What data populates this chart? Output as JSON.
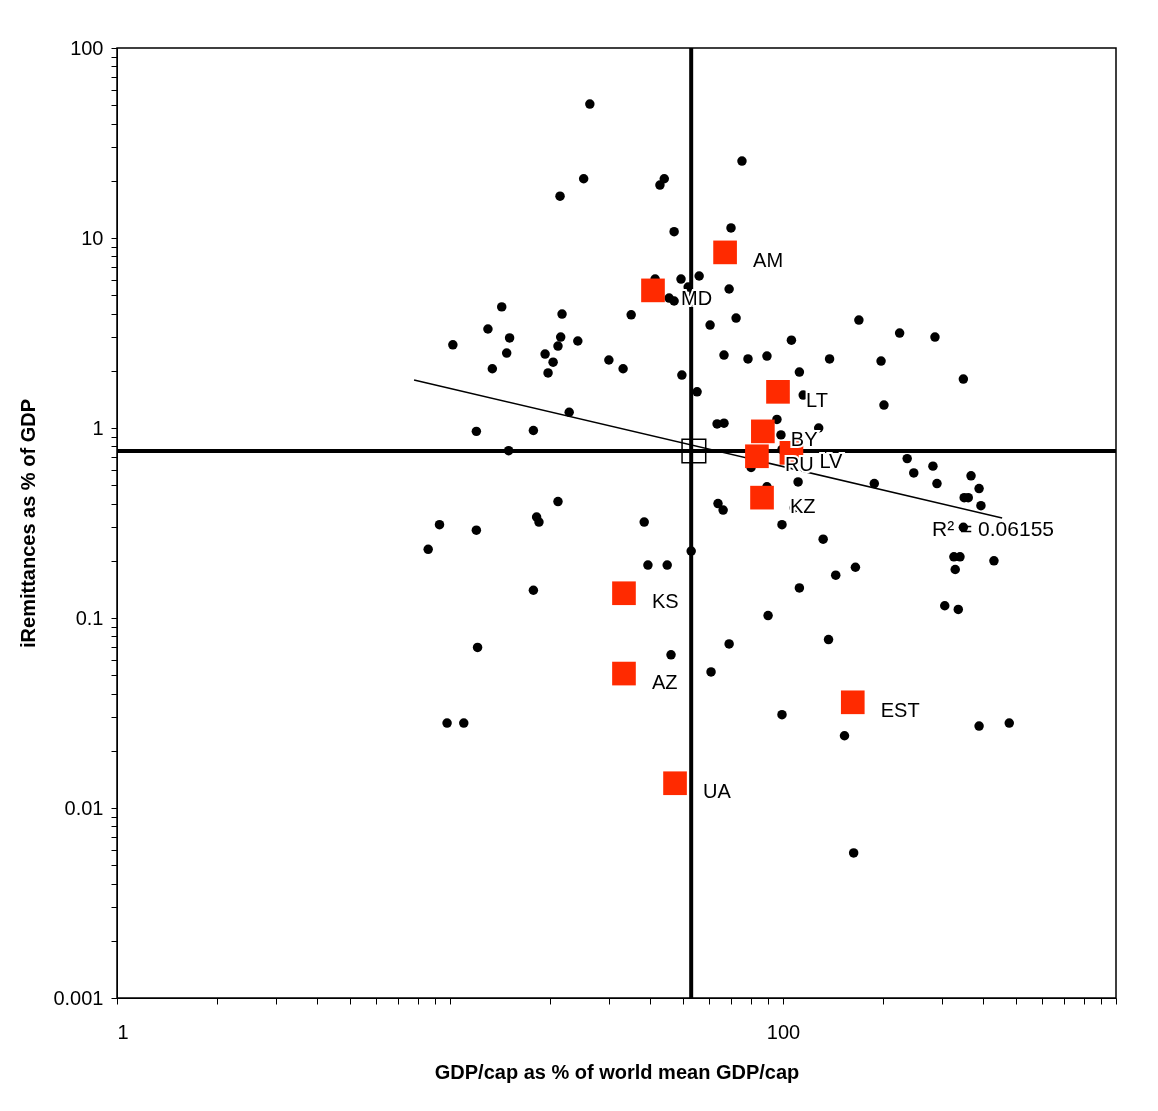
{
  "chart_data": {
    "type": "scatter",
    "xlabel": "GDP/cap as % of world mean GDP/cap",
    "ylabel": "iRemittances as % of GDP",
    "log": "xy",
    "grid": false,
    "xlim": [
      1,
      1000
    ],
    "ylim": [
      0.001,
      100
    ],
    "xticks": [
      1,
      {
        "value": 2,
        "label": null
      },
      {
        "value": 3,
        "label": null
      },
      {
        "value": 4,
        "label": null
      },
      {
        "value": 5,
        "label": null
      },
      {
        "value": 6,
        "label": null
      },
      {
        "value": 7,
        "label": null
      },
      {
        "value": 8,
        "label": null
      },
      {
        "value": 9,
        "label": null
      },
      {
        "value": 10,
        "label": null
      },
      {
        "value": 20,
        "label": null
      },
      {
        "value": 30,
        "label": null
      },
      {
        "value": 40,
        "label": null
      },
      {
        "value": 50,
        "label": null
      },
      {
        "value": 60,
        "label": null
      },
      {
        "value": 70,
        "label": null
      },
      {
        "value": 80,
        "label": null
      },
      {
        "value": 90,
        "label": null
      },
      100,
      {
        "value": 200,
        "label": null
      },
      {
        "value": 300,
        "label": null
      },
      {
        "value": 400,
        "label": null
      },
      {
        "value": 500,
        "label": null
      },
      {
        "value": 600,
        "label": null
      },
      {
        "value": 700,
        "label": null
      },
      {
        "value": 800,
        "label": null
      },
      {
        "value": 900,
        "label": null
      },
      {
        "value": 1000,
        "label": null
      }
    ],
    "yticks": [
      0.001,
      {
        "value": 0.002,
        "label": null
      },
      {
        "value": 0.003,
        "label": null
      },
      {
        "value": 0.004,
        "label": null
      },
      {
        "value": 0.005,
        "label": null
      },
      {
        "value": 0.006,
        "label": null
      },
      {
        "value": 0.007,
        "label": null
      },
      {
        "value": 0.008,
        "label": null
      },
      {
        "value": 0.009,
        "label": null
      },
      0.01,
      {
        "value": 0.02,
        "label": null
      },
      {
        "value": 0.03,
        "label": null
      },
      {
        "value": 0.04,
        "label": null
      },
      {
        "value": 0.05,
        "label": null
      },
      {
        "value": 0.06,
        "label": null
      },
      {
        "value": 0.07,
        "label": null
      },
      {
        "value": 0.08,
        "label": null
      },
      {
        "value": 0.09,
        "label": null
      },
      0.1,
      {
        "value": 0.2,
        "label": null
      },
      {
        "value": 0.3,
        "label": null
      },
      {
        "value": 0.4,
        "label": null
      },
      {
        "value": 0.5,
        "label": null
      },
      {
        "value": 0.6,
        "label": null
      },
      {
        "value": 0.7,
        "label": null
      },
      {
        "value": 0.8,
        "label": null
      },
      {
        "value": 0.9,
        "label": null
      },
      1,
      {
        "value": 2,
        "label": null
      },
      {
        "value": 3,
        "label": null
      },
      {
        "value": 4,
        "label": null
      },
      {
        "value": 5,
        "label": null
      },
      {
        "value": 6,
        "label": null
      },
      {
        "value": 7,
        "label": null
      },
      {
        "value": 8,
        "label": null
      },
      {
        "value": 9,
        "label": null
      },
      10,
      {
        "value": 20,
        "label": null
      },
      {
        "value": 30,
        "label": null
      },
      {
        "value": 40,
        "label": null
      },
      {
        "value": 50,
        "label": null
      },
      {
        "value": 60,
        "label": null
      },
      {
        "value": 70,
        "label": null
      },
      {
        "value": 80,
        "label": null
      },
      {
        "value": 90,
        "label": null
      },
      100
    ],
    "ref_lines": [
      {
        "axis": "y",
        "value": 0.757,
        "color": "#000000"
      },
      {
        "axis": "x",
        "value": 53,
        "color": "#000000"
      }
    ],
    "series": [
      {
        "marker": "circle",
        "color": "#000000",
        "x": [
          26.3,
          75.3,
          25.2,
          44.0,
          42.7,
          21.4,
          69.8,
          47.1,
          41.3,
          49.4,
          56.0,
          51.9,
          68.9,
          47.1,
          45.5,
          35.0,
          21.7,
          14.3,
          13.0,
          15.1,
          10.2,
          21.5,
          21.1,
          24.2,
          14.8,
          19.3,
          20.4,
          13.4,
          19.7,
          30.0,
          33.1,
          22.8,
          72.3,
          60.4,
          106,
          89.5,
          78.5,
          66.5,
          138,
          169,
          224,
          197,
          286,
          348,
          201,
          112,
          49.7,
          55.2,
          63.4,
          66.5,
          95.9,
          98.6,
          128,
          99.3,
          115,
          12.0,
          17.8,
          15.0,
          236,
          247,
          282,
          290,
          367,
          388,
          350,
          360,
          393,
          188,
          80.2,
          111,
          89.5,
          108,
          99.3,
          132,
          348,
          326,
          340,
          329,
          430,
          165,
          144,
          112,
          90.2,
          306,
          336,
          137,
          68.9,
          46.1,
          60.8,
          99.3,
          153,
          388,
          478,
          163,
          9.8,
          11.0,
          12.1,
          17.8,
          38.3,
          39.3,
          44.9,
          53.0,
          63.8,
          66.1,
          21.1,
          18.2,
          18.5,
          9.3,
          12.0,
          8.6
        ],
        "values": [
          50.7,
          25.4,
          20.5,
          20.5,
          19.0,
          16.6,
          11.3,
          10.8,
          6.08,
          6.08,
          6.31,
          5.52,
          5.39,
          4.66,
          4.83,
          3.94,
          3.98,
          4.34,
          3.32,
          2.98,
          2.74,
          3.01,
          2.7,
          2.87,
          2.48,
          2.45,
          2.22,
          2.05,
          1.95,
          2.28,
          2.05,
          1.21,
          3.79,
          3.48,
          2.9,
          2.39,
          2.31,
          2.42,
          2.31,
          3.7,
          3.16,
          2.25,
          3.01,
          1.81,
          1.32,
          1.97,
          1.9,
          1.55,
          1.05,
          1.06,
          1.11,
          0.92,
          1.0,
          0.77,
          1.49,
          0.96,
          0.97,
          0.76,
          0.69,
          0.58,
          0.63,
          0.51,
          0.56,
          0.48,
          0.43,
          0.43,
          0.39,
          0.51,
          0.62,
          0.52,
          0.49,
          0.38,
          0.31,
          0.26,
          0.3,
          0.21,
          0.21,
          0.18,
          0.2,
          0.185,
          0.168,
          0.144,
          0.103,
          0.116,
          0.111,
          0.077,
          0.073,
          0.064,
          0.052,
          0.031,
          0.024,
          0.027,
          0.028,
          0.0058,
          0.028,
          0.028,
          0.07,
          0.14,
          0.32,
          0.19,
          0.19,
          0.225,
          0.4,
          0.37,
          0.41,
          0.34,
          0.32,
          0.31,
          0.29,
          0.23
        ]
      },
      {
        "marker": "square",
        "color": "#ff2a00",
        "x": [
          67,
          40.7,
          96.6,
          87,
          83.5,
          106,
          86.5,
          33.3,
          33.3,
          162,
          47.4
        ],
        "values": [
          8.4,
          5.3,
          1.55,
          0.96,
          0.71,
          0.74,
          0.43,
          0.135,
          0.051,
          0.036,
          0.0135
        ]
      },
      {
        "marker": "square",
        "color": "#000000",
        "x": [
          54
        ],
        "values": [
          0.757
        ]
      },
      {
        "type": "line",
        "color": "#000000",
        "x": [
          7.8,
          455
        ],
        "values": [
          1.79,
          0.336
        ]
      }
    ],
    "annotations": [
      {
        "text": "AM",
        "x": 67,
        "y": 8.4
      },
      {
        "text": "MD",
        "x": 40.7,
        "y": 5.3
      },
      {
        "text": "LT",
        "x": 96.6,
        "y": 1.55
      },
      {
        "text": "BY",
        "x": 87,
        "y": 0.96
      },
      {
        "text": "RU",
        "x": 83.5,
        "y": 0.71
      },
      {
        "text": "LV",
        "x": 106,
        "y": 0.74
      },
      {
        "text": "KZ",
        "x": 86.5,
        "y": 0.43
      },
      {
        "text": "KS",
        "x": 33.3,
        "y": 0.135
      },
      {
        "text": "AZ",
        "x": 33.3,
        "y": 0.051
      },
      {
        "text": "EST",
        "x": 162,
        "y": 0.036
      },
      {
        "text": "UA",
        "x": 47.4,
        "y": 0.0135
      },
      "R² = 0.06155"
    ]
  }
}
